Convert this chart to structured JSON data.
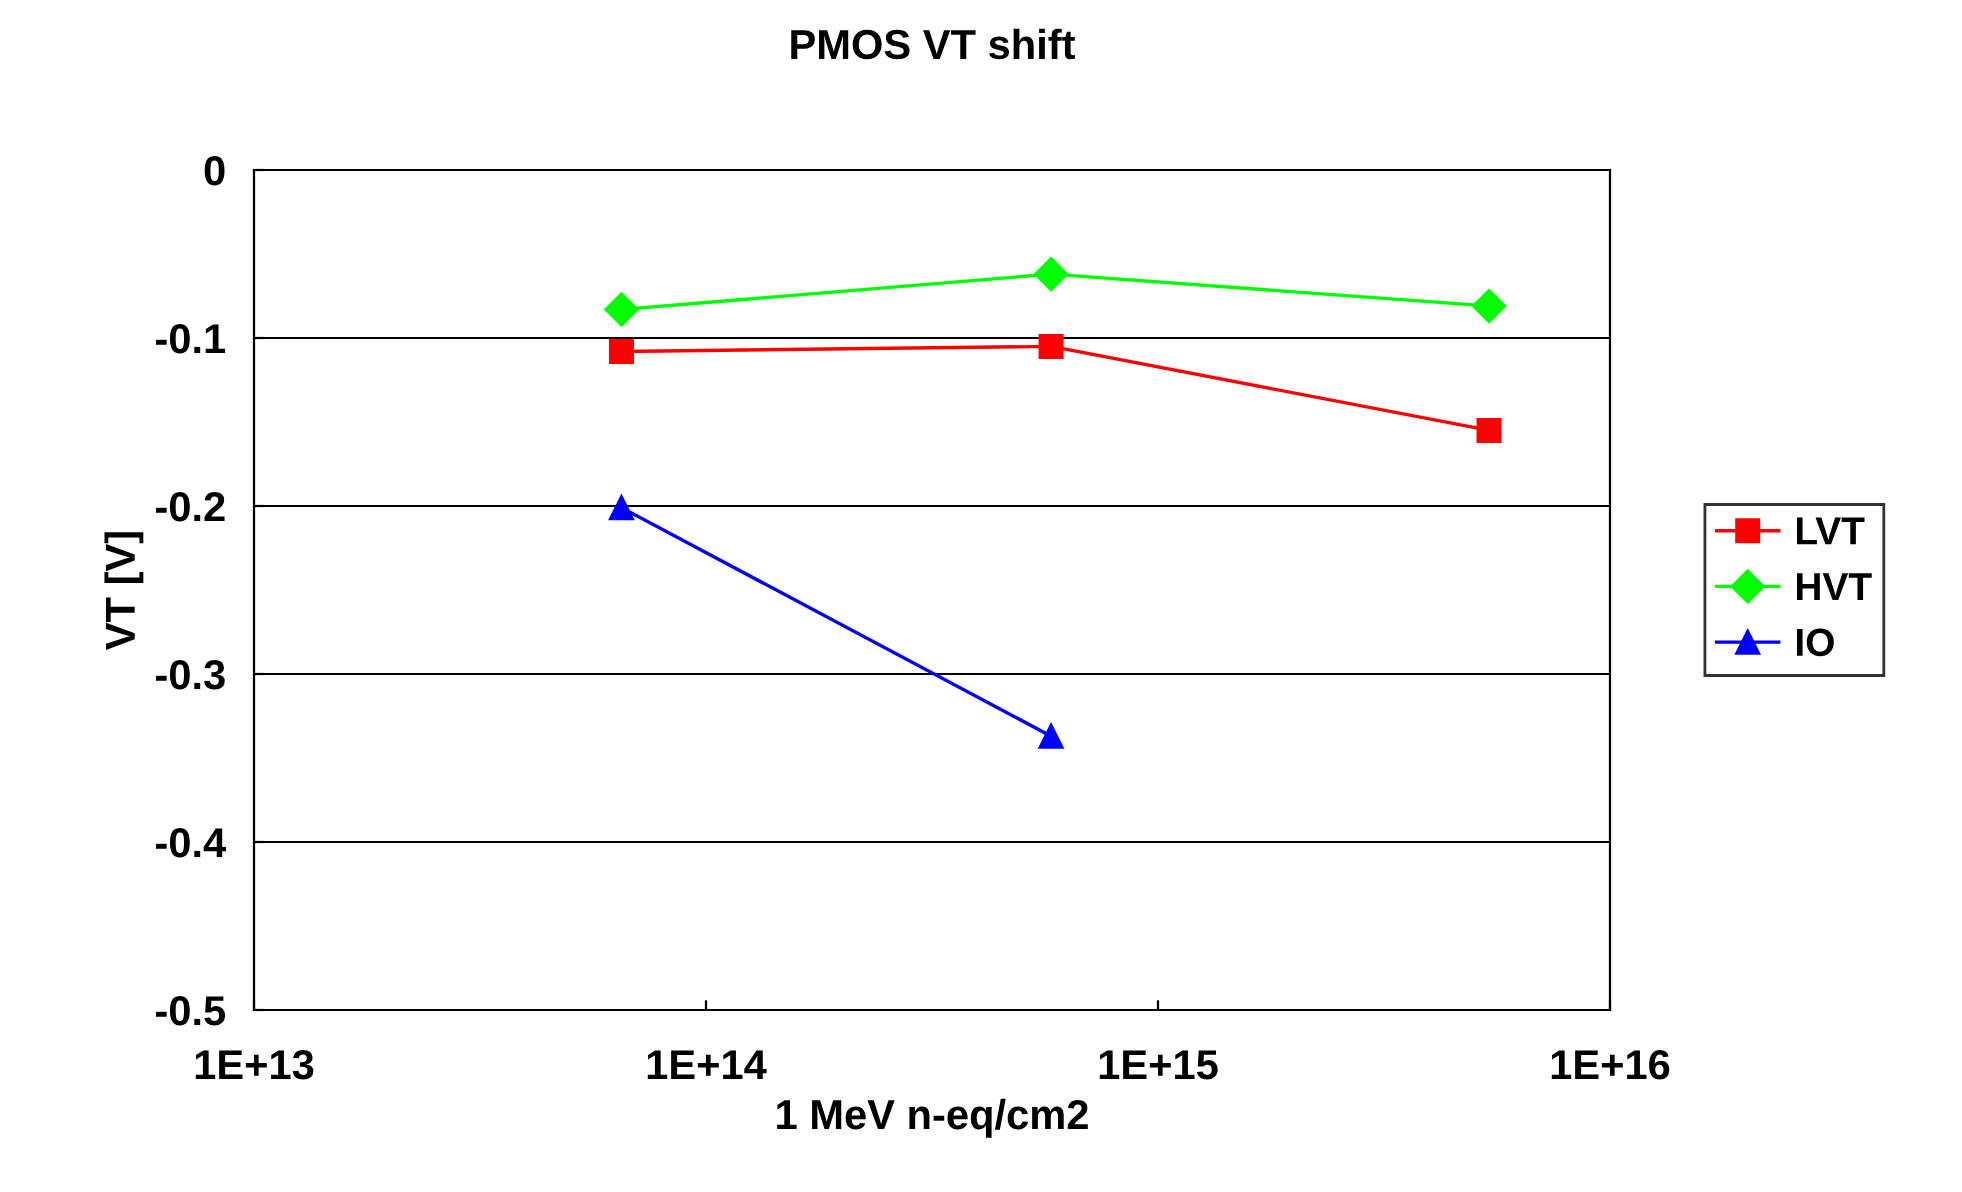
{
  "chart_data": {
    "type": "line",
    "title": "PMOS VT shift",
    "xlabel": "1 MeV n-eq/cm2",
    "ylabel": "VT [V]",
    "x": [
      65000000000000.0,
      580000000000000.0,
      5400000000000000.0
    ],
    "series": [
      {
        "name": "LVT",
        "color": "#ff0000",
        "marker": "square",
        "values": [
          -0.108,
          -0.105,
          -0.155
        ]
      },
      {
        "name": "HVT",
        "color": "#00ff00",
        "marker": "diamond",
        "values": [
          -0.083,
          -0.062,
          -0.081
        ]
      },
      {
        "name": "IO",
        "color": "#0000ff",
        "marker": "triangle",
        "values": [
          -0.201,
          -0.337,
          null
        ]
      }
    ],
    "log": "x",
    "xlim": [
      10000000000000.0,
      1e+16
    ],
    "xticks": [
      {
        "value": 10000000000000.0,
        "label": "1E+13"
      },
      {
        "value": 100000000000000.0,
        "label": "1E+14"
      },
      {
        "value": 1000000000000000.0,
        "label": "1E+15"
      },
      {
        "value": 1e+16,
        "label": "1E+16"
      }
    ],
    "ylim": [
      -0.5,
      0
    ],
    "yticks": [
      -0.5,
      -0.4,
      -0.3,
      -0.2,
      -0.1,
      0
    ],
    "grid": "y",
    "legend": "right",
    "line_style": "solid"
  }
}
